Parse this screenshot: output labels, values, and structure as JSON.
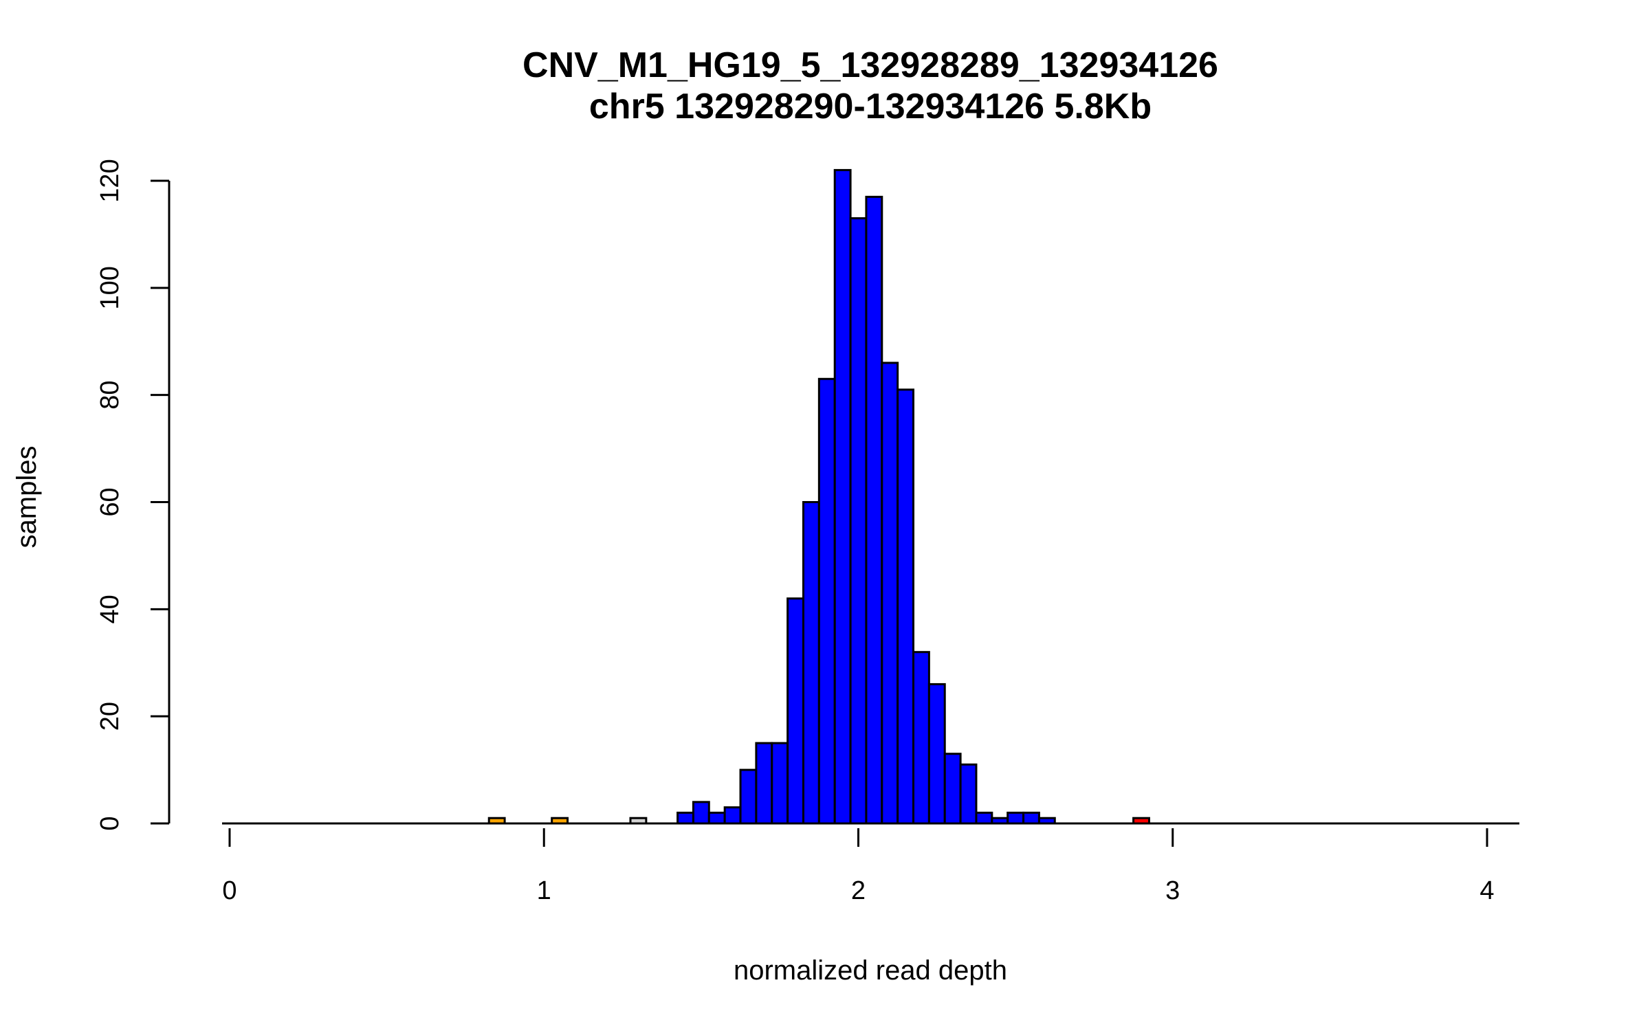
{
  "chart_data": {
    "type": "bar",
    "title": "CNV_M1_HG19_5_132928289_132934126",
    "subtitle": "chr5 132928290-132934126 5.8Kb",
    "xlabel": "normalized read depth",
    "ylabel": "samples",
    "xlim": [
      0,
      4
    ],
    "ylim": [
      0,
      120
    ],
    "xticks": [
      "0",
      "1",
      "2",
      "3",
      "4"
    ],
    "yticks": [
      "0",
      "20",
      "40",
      "60",
      "80",
      "100",
      "120"
    ],
    "bin_width": 0.05,
    "colors": {
      "orange": "#FFA500",
      "gray": "#D3D3D3",
      "blue": "#0000FF",
      "red": "#FF0000"
    },
    "bins": [
      {
        "start": 0.825,
        "count": 1,
        "color": "orange"
      },
      {
        "start": 1.025,
        "count": 1,
        "color": "orange"
      },
      {
        "start": 1.275,
        "count": 1,
        "color": "gray"
      },
      {
        "start": 1.425,
        "count": 2,
        "color": "blue"
      },
      {
        "start": 1.475,
        "count": 4,
        "color": "blue"
      },
      {
        "start": 1.525,
        "count": 2,
        "color": "blue"
      },
      {
        "start": 1.575,
        "count": 3,
        "color": "blue"
      },
      {
        "start": 1.625,
        "count": 10,
        "color": "blue"
      },
      {
        "start": 1.675,
        "count": 15,
        "color": "blue"
      },
      {
        "start": 1.725,
        "count": 15,
        "color": "blue"
      },
      {
        "start": 1.775,
        "count": 42,
        "color": "blue"
      },
      {
        "start": 1.825,
        "count": 60,
        "color": "blue"
      },
      {
        "start": 1.875,
        "count": 83,
        "color": "blue"
      },
      {
        "start": 1.925,
        "count": 122,
        "color": "blue"
      },
      {
        "start": 1.975,
        "count": 113,
        "color": "blue"
      },
      {
        "start": 2.025,
        "count": 117,
        "color": "blue"
      },
      {
        "start": 2.075,
        "count": 86,
        "color": "blue"
      },
      {
        "start": 2.125,
        "count": 81,
        "color": "blue"
      },
      {
        "start": 2.175,
        "count": 32,
        "color": "blue"
      },
      {
        "start": 2.225,
        "count": 26,
        "color": "blue"
      },
      {
        "start": 2.275,
        "count": 13,
        "color": "blue"
      },
      {
        "start": 2.325,
        "count": 11,
        "color": "blue"
      },
      {
        "start": 2.375,
        "count": 2,
        "color": "blue"
      },
      {
        "start": 2.425,
        "count": 1,
        "color": "blue"
      },
      {
        "start": 2.475,
        "count": 2,
        "color": "blue"
      },
      {
        "start": 2.525,
        "count": 2,
        "color": "blue"
      },
      {
        "start": 2.575,
        "count": 1,
        "color": "blue"
      },
      {
        "start": 2.875,
        "count": 1,
        "color": "red"
      }
    ],
    "grid": false
  }
}
